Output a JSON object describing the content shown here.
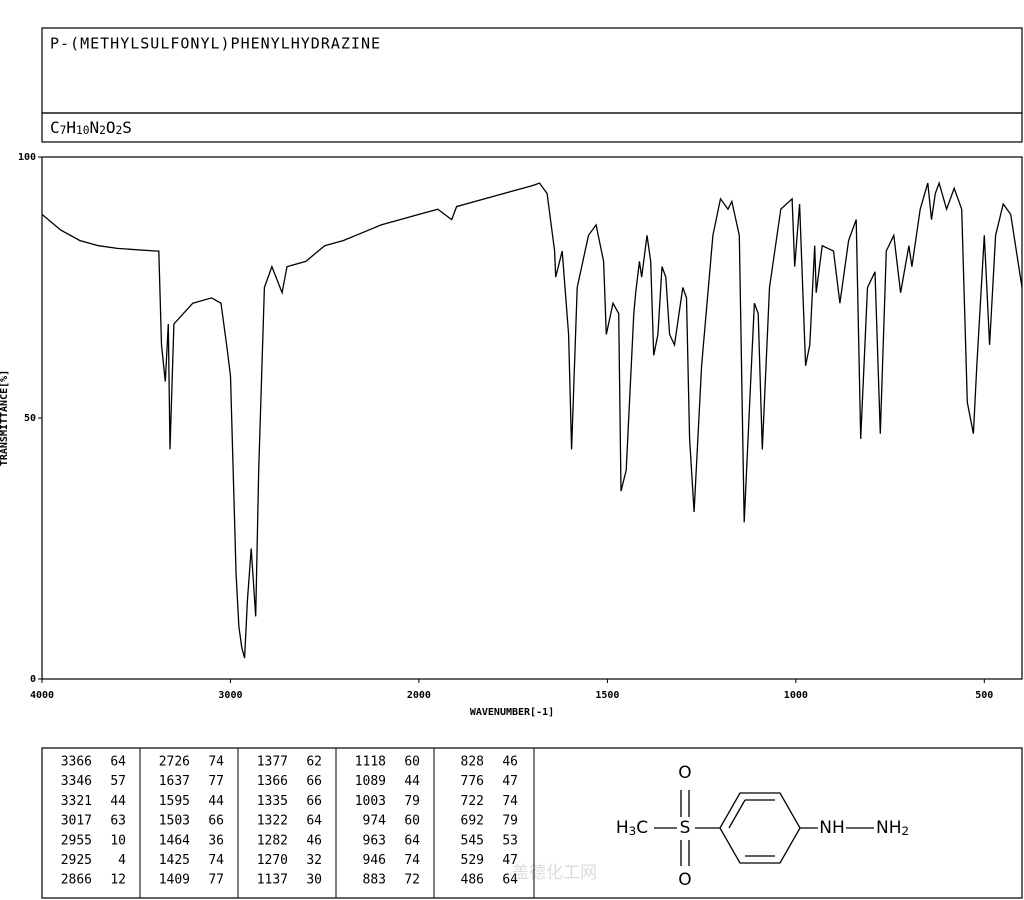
{
  "header": {
    "title": "P-(METHYLSULFONYL)PHENYLHYDRAZINE",
    "formula": "C7H10N2O2S"
  },
  "chart_data": {
    "type": "line",
    "x_label": "WAVENUMBER[-1]",
    "y_label": "TRANSMITTANCE[%]",
    "xlim": [
      4000,
      400
    ],
    "x_break": 2000,
    "x_break_factor": 2,
    "xticks": [
      4000,
      3000,
      2000,
      1500,
      1000,
      500
    ],
    "ylim": [
      0,
      100
    ],
    "yticks": [
      0,
      50,
      100
    ],
    "x": [
      4000,
      3900,
      3800,
      3700,
      3600,
      3400,
      3380,
      3366,
      3346,
      3330,
      3321,
      3300,
      3200,
      3100,
      3050,
      3017,
      3000,
      2970,
      2955,
      2940,
      2925,
      2910,
      2890,
      2866,
      2850,
      2820,
      2780,
      2726,
      2700,
      2600,
      2500,
      2400,
      2300,
      2200,
      2100,
      2000,
      1950,
      1913,
      1900,
      1800,
      1700,
      1680,
      1660,
      1640,
      1637,
      1620,
      1603,
      1595,
      1580,
      1550,
      1530,
      1510,
      1503,
      1485,
      1470,
      1464,
      1450,
      1430,
      1425,
      1415,
      1409,
      1395,
      1385,
      1377,
      1366,
      1355,
      1345,
      1335,
      1322,
      1300,
      1290,
      1282,
      1270,
      1250,
      1220,
      1200,
      1180,
      1170,
      1150,
      1137,
      1118,
      1110,
      1100,
      1089,
      1070,
      1040,
      1010,
      1003,
      990,
      974,
      963,
      950,
      946,
      930,
      900,
      883,
      860,
      840,
      828,
      810,
      790,
      776,
      760,
      740,
      722,
      700,
      692,
      670,
      650,
      640,
      630,
      620,
      600,
      580,
      560,
      545,
      529,
      520,
      500,
      486,
      470,
      450,
      430,
      400
    ],
    "series": [
      {
        "color": "#000000",
        "values": [
          89,
          86,
          84,
          83,
          82.5,
          82,
          82,
          64,
          57,
          68,
          44,
          68,
          72,
          73,
          72,
          63,
          58,
          20,
          10,
          6,
          4,
          15,
          25,
          12,
          40,
          75,
          79,
          74,
          79,
          80,
          83,
          84,
          85.5,
          87,
          88,
          89,
          90,
          88,
          90.5,
          92.5,
          94.5,
          95,
          93,
          82,
          77,
          82,
          66,
          44,
          75,
          85,
          87,
          80,
          66,
          72,
          70,
          36,
          40,
          70,
          74,
          80,
          77,
          85,
          80,
          62,
          66,
          79,
          77,
          66,
          64,
          75,
          73,
          46,
          32,
          60,
          85,
          92,
          90,
          91.5,
          85,
          30,
          60,
          72,
          70,
          44,
          75,
          90,
          92,
          79,
          91,
          60,
          64,
          83,
          74,
          83,
          82,
          72,
          84,
          88,
          46,
          75,
          78,
          47,
          82,
          85,
          74,
          83,
          79,
          90,
          95,
          88,
          93,
          95,
          90,
          94,
          90,
          53,
          47,
          60,
          85,
          64,
          85,
          91,
          89,
          75
        ]
      }
    ]
  },
  "peak_table": {
    "columns": [
      [
        [
          3366,
          64
        ],
        [
          3346,
          57
        ],
        [
          3321,
          44
        ],
        [
          3017,
          63
        ],
        [
          2955,
          10
        ],
        [
          2925,
          4
        ],
        [
          2866,
          12
        ]
      ],
      [
        [
          2726,
          74
        ],
        [
          1637,
          77
        ],
        [
          1595,
          44
        ],
        [
          1503,
          66
        ],
        [
          1464,
          36
        ],
        [
          1425,
          74
        ],
        [
          1409,
          77
        ]
      ],
      [
        [
          1377,
          62
        ],
        [
          1366,
          66
        ],
        [
          1335,
          66
        ],
        [
          1322,
          64
        ],
        [
          1282,
          46
        ],
        [
          1270,
          32
        ],
        [
          1137,
          30
        ]
      ],
      [
        [
          1118,
          60
        ],
        [
          1089,
          44
        ],
        [
          1003,
          79
        ],
        [
          974,
          60
        ],
        [
          963,
          64
        ],
        [
          946,
          74
        ],
        [
          883,
          72
        ]
      ],
      [
        [
          828,
          46
        ],
        [
          776,
          47
        ],
        [
          722,
          74
        ],
        [
          692,
          79
        ],
        [
          545,
          53
        ],
        [
          529,
          47
        ],
        [
          486,
          64
        ]
      ]
    ]
  },
  "structure": {
    "atoms": [
      "O",
      "S",
      "O",
      "H3C",
      "NH",
      "NH2"
    ]
  },
  "watermark": "盖德化工网"
}
